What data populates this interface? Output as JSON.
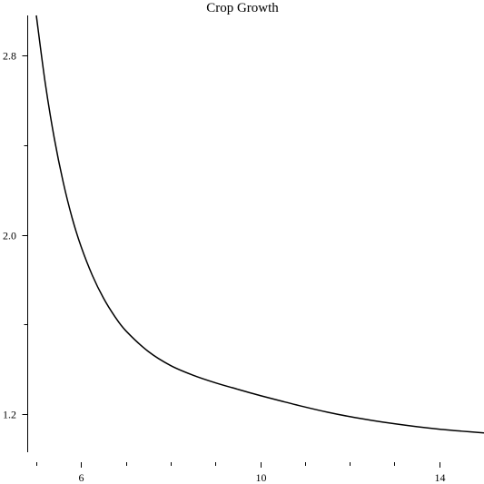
{
  "chart_data": {
    "type": "line",
    "title": "Crop Growth",
    "xlabel": "",
    "ylabel": "",
    "xlim": [
      5,
      15
    ],
    "ylim": [
      1.03,
      2.98
    ],
    "grid": false,
    "x_ticks": {
      "major": [
        6,
        10,
        14
      ],
      "minor": [
        5,
        7,
        8,
        9,
        11,
        12,
        13,
        15
      ],
      "labels": [
        "6",
        "10",
        "14"
      ]
    },
    "y_ticks": {
      "major": [
        1.2,
        2.0,
        2.8
      ],
      "minor": [
        1.6,
        2.4
      ],
      "labels": [
        "1.2",
        "2.0",
        "2.8"
      ]
    },
    "series": [
      {
        "color": "#000000",
        "x": [
          5.0,
          5.2,
          5.4,
          5.6,
          5.8,
          6.0,
          6.25,
          6.5,
          6.75,
          7.0,
          7.5,
          8.0,
          8.5,
          9.0,
          9.5,
          10.0,
          10.5,
          11.0,
          11.5,
          12.0,
          12.5,
          13.0,
          13.5,
          14.0,
          14.5,
          15.0
        ],
        "y": [
          2.98,
          2.677,
          2.433,
          2.236,
          2.076,
          1.948,
          1.82,
          1.718,
          1.637,
          1.572,
          1.48,
          1.417,
          1.374,
          1.34,
          1.311,
          1.283,
          1.257,
          1.232,
          1.209,
          1.189,
          1.172,
          1.157,
          1.144,
          1.133,
          1.124,
          1.116
        ]
      }
    ]
  }
}
